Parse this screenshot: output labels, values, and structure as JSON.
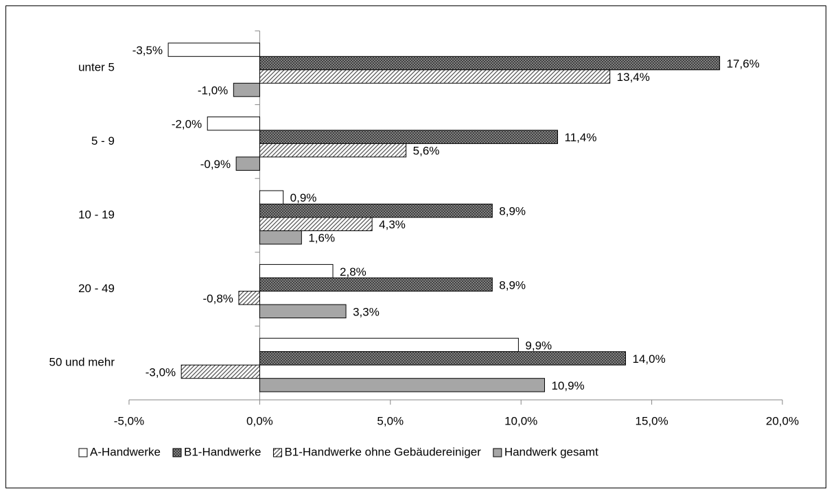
{
  "chart_data": {
    "type": "hbar",
    "categories": [
      "unter 5",
      "5 - 9",
      "10 - 19",
      "20 - 49",
      "50 und mehr"
    ],
    "series": [
      {
        "name": "A-Handwerke",
        "color": "#ffffff",
        "values": [
          -3.5,
          -2.0,
          0.9,
          2.8,
          9.9
        ],
        "value_labels": [
          "-3,5%",
          "-2,0%",
          "0,9%",
          "2,8%",
          "9,9%"
        ]
      },
      {
        "name": "B1-Handwerke",
        "color": "#7f7f7f",
        "pattern": "crosshatch",
        "values": [
          17.6,
          11.4,
          8.9,
          8.9,
          14.0
        ],
        "value_labels": [
          "17,6%",
          "11,4%",
          "8,9%",
          "8,9%",
          "14,0%"
        ]
      },
      {
        "name": "B1-Handwerke ohne Gebäudereiniger",
        "color": "#7f7f7f",
        "pattern": "diagonal",
        "values": [
          13.4,
          5.6,
          4.3,
          -0.8,
          -3.0
        ],
        "value_labels": [
          "13,4%",
          "5,6%",
          "4,3%",
          "-0,8%",
          "-3,0%"
        ]
      },
      {
        "name": "Handwerk gesamt",
        "color": "#a6a6a6",
        "values": [
          -1.0,
          -0.9,
          1.6,
          3.3,
          10.9
        ],
        "value_labels": [
          "-1,0%",
          "-0,9%",
          "1,6%",
          "3,3%",
          "10,9%"
        ]
      }
    ],
    "xlim": [
      -5,
      20
    ],
    "xticks": [
      {
        "value": -5,
        "label": "-5,0%"
      },
      {
        "value": 0,
        "label": "0,0%"
      },
      {
        "value": 5,
        "label": "5,0%"
      },
      {
        "value": 10,
        "label": "10,0%"
      },
      {
        "value": 15,
        "label": "15,0%"
      },
      {
        "value": 20,
        "label": "20,0%"
      }
    ],
    "legend": "bottom"
  }
}
